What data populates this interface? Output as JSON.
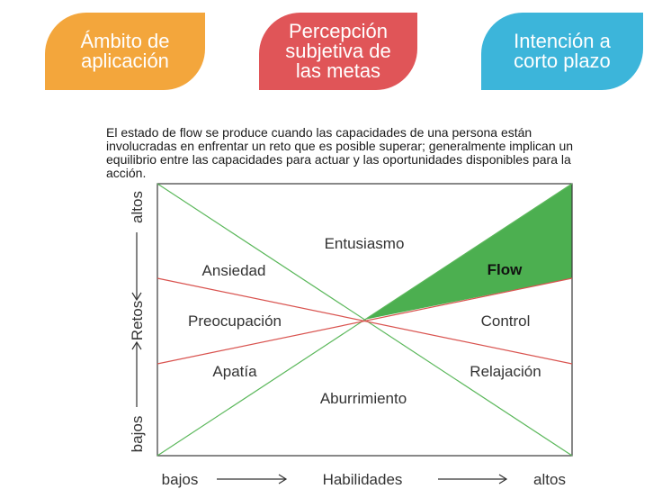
{
  "header": {
    "badges": [
      {
        "text": "Ámbito de\naplicación",
        "color": "#f3a63c"
      },
      {
        "text": "Percepción\nsubjetiva de\nlas metas",
        "color": "#e05558"
      },
      {
        "text": "Intención a\ncorto plazo",
        "color": "#3cb5da"
      }
    ]
  },
  "description": "El estado de flow se produce cuando las capacidades de una persona están involucradas en enfrentar un reto que es posible superar; generalmente implican un equilibrio entre las capacidades para actuar y las oportunidades disponibles para la acción.",
  "diagram": {
    "regions": {
      "entusiasmo": "Entusiasmo",
      "ansiedad": "Ansiedad",
      "flow": "Flow",
      "preocupacion": "Preocupación",
      "control": "Control",
      "apatia": "Apatía",
      "relajacion": "Relajación",
      "aburrimiento": "Aburrimiento"
    },
    "y_axis": {
      "label": "Retos",
      "high": "altos",
      "low": "bajos"
    },
    "x_axis": {
      "label": "Habilidades",
      "low": "bajos",
      "high": "altos"
    },
    "colors": {
      "green_line": "#5cb85c",
      "red_line": "#d9534f",
      "flow_fill": "#4caf50",
      "border": "#3a3a3a"
    }
  }
}
